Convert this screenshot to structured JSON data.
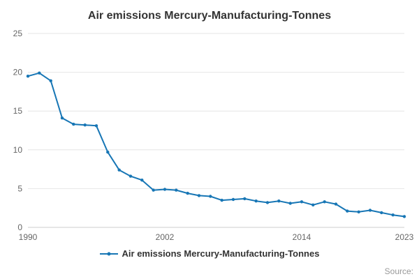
{
  "title": "Air emissions Mercury-Manufacturing-Tonnes",
  "legend": {
    "label": "Air emissions Mercury-Manufacturing-Tonnes"
  },
  "source_label": "Source:",
  "colors": {
    "line": "#1776b5",
    "grid": "#e6e6e6",
    "axis": "#cccccc",
    "tick": "#666666",
    "title": "#333333"
  },
  "chart_data": {
    "type": "line",
    "title": "Air emissions Mercury-Manufacturing-Tonnes",
    "xlabel": "",
    "ylabel": "",
    "ylim": [
      0,
      25
    ],
    "yticks": [
      0,
      5,
      10,
      15,
      20,
      25
    ],
    "xticks": [
      1990,
      2002,
      2014,
      2023
    ],
    "grid": "horizontal",
    "legend_position": "bottom",
    "marker": "circle",
    "x": [
      1990,
      1991,
      1992,
      1993,
      1994,
      1995,
      1996,
      1997,
      1998,
      1999,
      2000,
      2001,
      2002,
      2003,
      2004,
      2005,
      2006,
      2007,
      2008,
      2009,
      2010,
      2011,
      2012,
      2013,
      2014,
      2015,
      2016,
      2017,
      2018,
      2019,
      2020,
      2021,
      2022,
      2023
    ],
    "series": [
      {
        "name": "Air emissions Mercury-Manufacturing-Tonnes",
        "values": [
          19.5,
          19.9,
          18.9,
          14.1,
          13.3,
          13.2,
          13.1,
          9.7,
          7.4,
          6.6,
          6.1,
          4.8,
          4.9,
          4.8,
          4.4,
          4.1,
          4.0,
          3.5,
          3.6,
          3.7,
          3.4,
          3.2,
          3.4,
          3.1,
          3.3,
          2.9,
          3.3,
          3.0,
          2.1,
          2.0,
          2.2,
          1.9,
          1.6,
          1.4
        ]
      }
    ]
  }
}
